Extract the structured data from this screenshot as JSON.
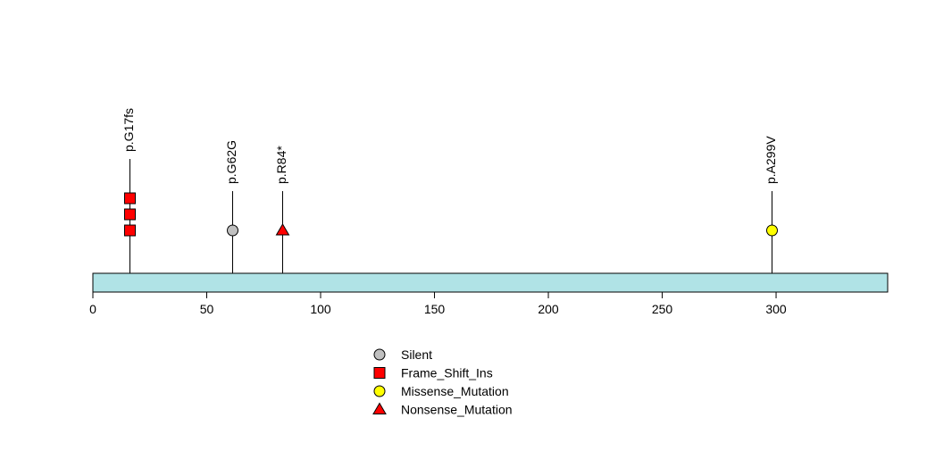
{
  "chart_data": {
    "type": "lollipop",
    "xlim": [
      0,
      349
    ],
    "x_ticks": [
      0,
      50,
      100,
      150,
      200,
      250,
      300
    ],
    "mutations": [
      {
        "position": 16,
        "label": "p.G17fs",
        "type": "Frame_Shift_Ins",
        "count": 3
      },
      {
        "position": 61,
        "label": "p.G62G",
        "type": "Silent",
        "count": 1
      },
      {
        "position": 83,
        "label": "p.R84*",
        "type": "Nonsense_Mutation",
        "count": 1
      },
      {
        "position": 298,
        "label": "p.A299V",
        "type": "Missense_Mutation",
        "count": 1
      }
    ],
    "legend": [
      {
        "type": "Silent",
        "label": "Silent",
        "shape": "circle",
        "color": "#c0c0c0"
      },
      {
        "type": "Frame_Shift_Ins",
        "label": "Frame_Shift_Ins",
        "shape": "square",
        "color": "#ff0000"
      },
      {
        "type": "Missense_Mutation",
        "label": "Missense_Mutation",
        "shape": "circle",
        "color": "#ffff00"
      },
      {
        "type": "Nonsense_Mutation",
        "label": "Nonsense_Mutation",
        "shape": "triangle",
        "color": "#ff0000"
      }
    ],
    "protein_bar_color": "#b0e3e6",
    "legend_placement": "bottom-center"
  }
}
